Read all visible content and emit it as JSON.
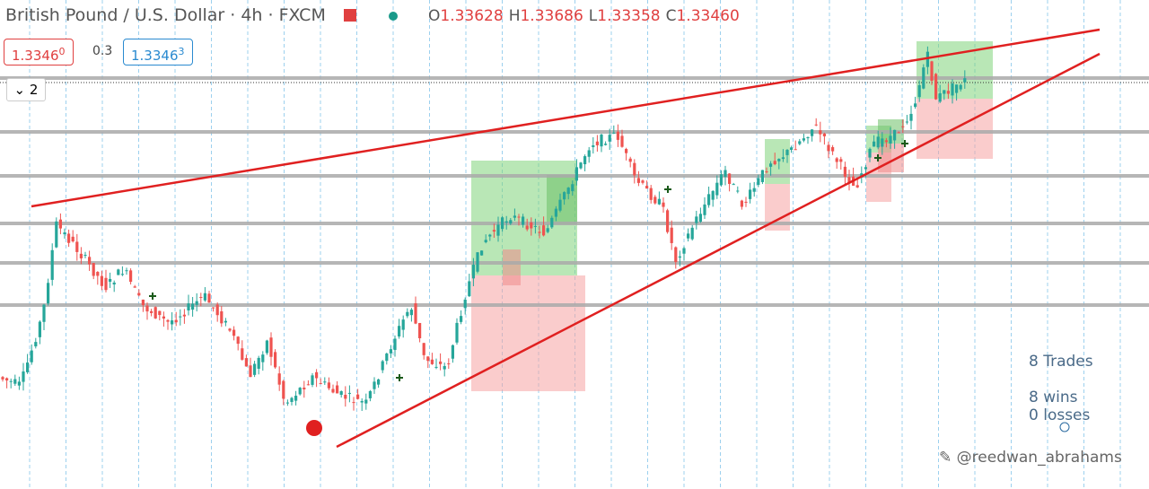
{
  "header": {
    "symbol": "British Pound / U.S. Dollar",
    "interval": "4h",
    "source": "FXCM",
    "ohlc": [
      {
        "key": "O",
        "value": "1.33628"
      },
      {
        "key": "H",
        "value": "1.33686"
      },
      {
        "key": "L",
        "value": "1.33358"
      },
      {
        "key": "C",
        "value": "1.33460"
      }
    ]
  },
  "quote": {
    "sell": "1.3346",
    "sell_pip": "0",
    "spread": "0.3",
    "buy": "1.3346",
    "buy_pip": "3"
  },
  "indicators_count": "2",
  "stats": {
    "trades": "8 Trades",
    "wins": "8 wins",
    "losses": "0 losses"
  },
  "watermark": "@reedwan_abrahams"
}
